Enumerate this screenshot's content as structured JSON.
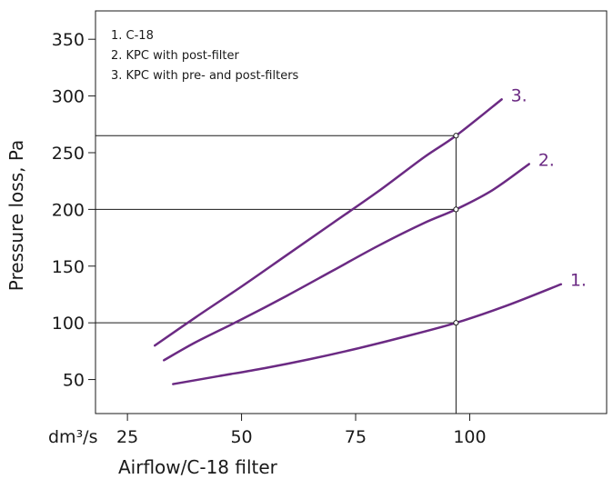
{
  "chart_data": {
    "type": "line",
    "title": "",
    "xlabel": "Airflow/C-18 filter",
    "xunit": "dm³/s",
    "ylabel": "Pressure loss, Pa",
    "xlim": [
      18,
      130
    ],
    "ylim": [
      20,
      375
    ],
    "xticks": [
      25,
      50,
      75,
      100
    ],
    "yticks": [
      50,
      100,
      150,
      200,
      250,
      300,
      350
    ],
    "legend_position": "top-left",
    "legend": [
      "1. C-18",
      "2. KPC with post-filter",
      "3. KPC with pre- and post-filters"
    ],
    "grid": false,
    "series_color": "#6b2a83",
    "series": [
      {
        "name": "1.",
        "x": [
          35,
          45,
          55,
          65,
          75,
          85,
          97,
          108,
          120
        ],
        "y": [
          46,
          53,
          60,
          68,
          77,
          87,
          100,
          115,
          134
        ]
      },
      {
        "name": "2.",
        "x": [
          33,
          40,
          50,
          60,
          70,
          80,
          90,
          97,
          105,
          113
        ],
        "y": [
          67,
          83,
          103,
          124,
          146,
          168,
          188,
          200,
          217,
          240
        ]
      },
      {
        "name": "3.",
        "x": [
          31,
          40,
          50,
          60,
          70,
          80,
          90,
          97,
          107
        ],
        "y": [
          80,
          105,
          132,
          160,
          188,
          216,
          246,
          265,
          297
        ]
      }
    ],
    "reference_points": [
      {
        "x": 97,
        "y": 100
      },
      {
        "x": 97,
        "y": 200
      },
      {
        "x": 97,
        "y": 265
      }
    ]
  }
}
